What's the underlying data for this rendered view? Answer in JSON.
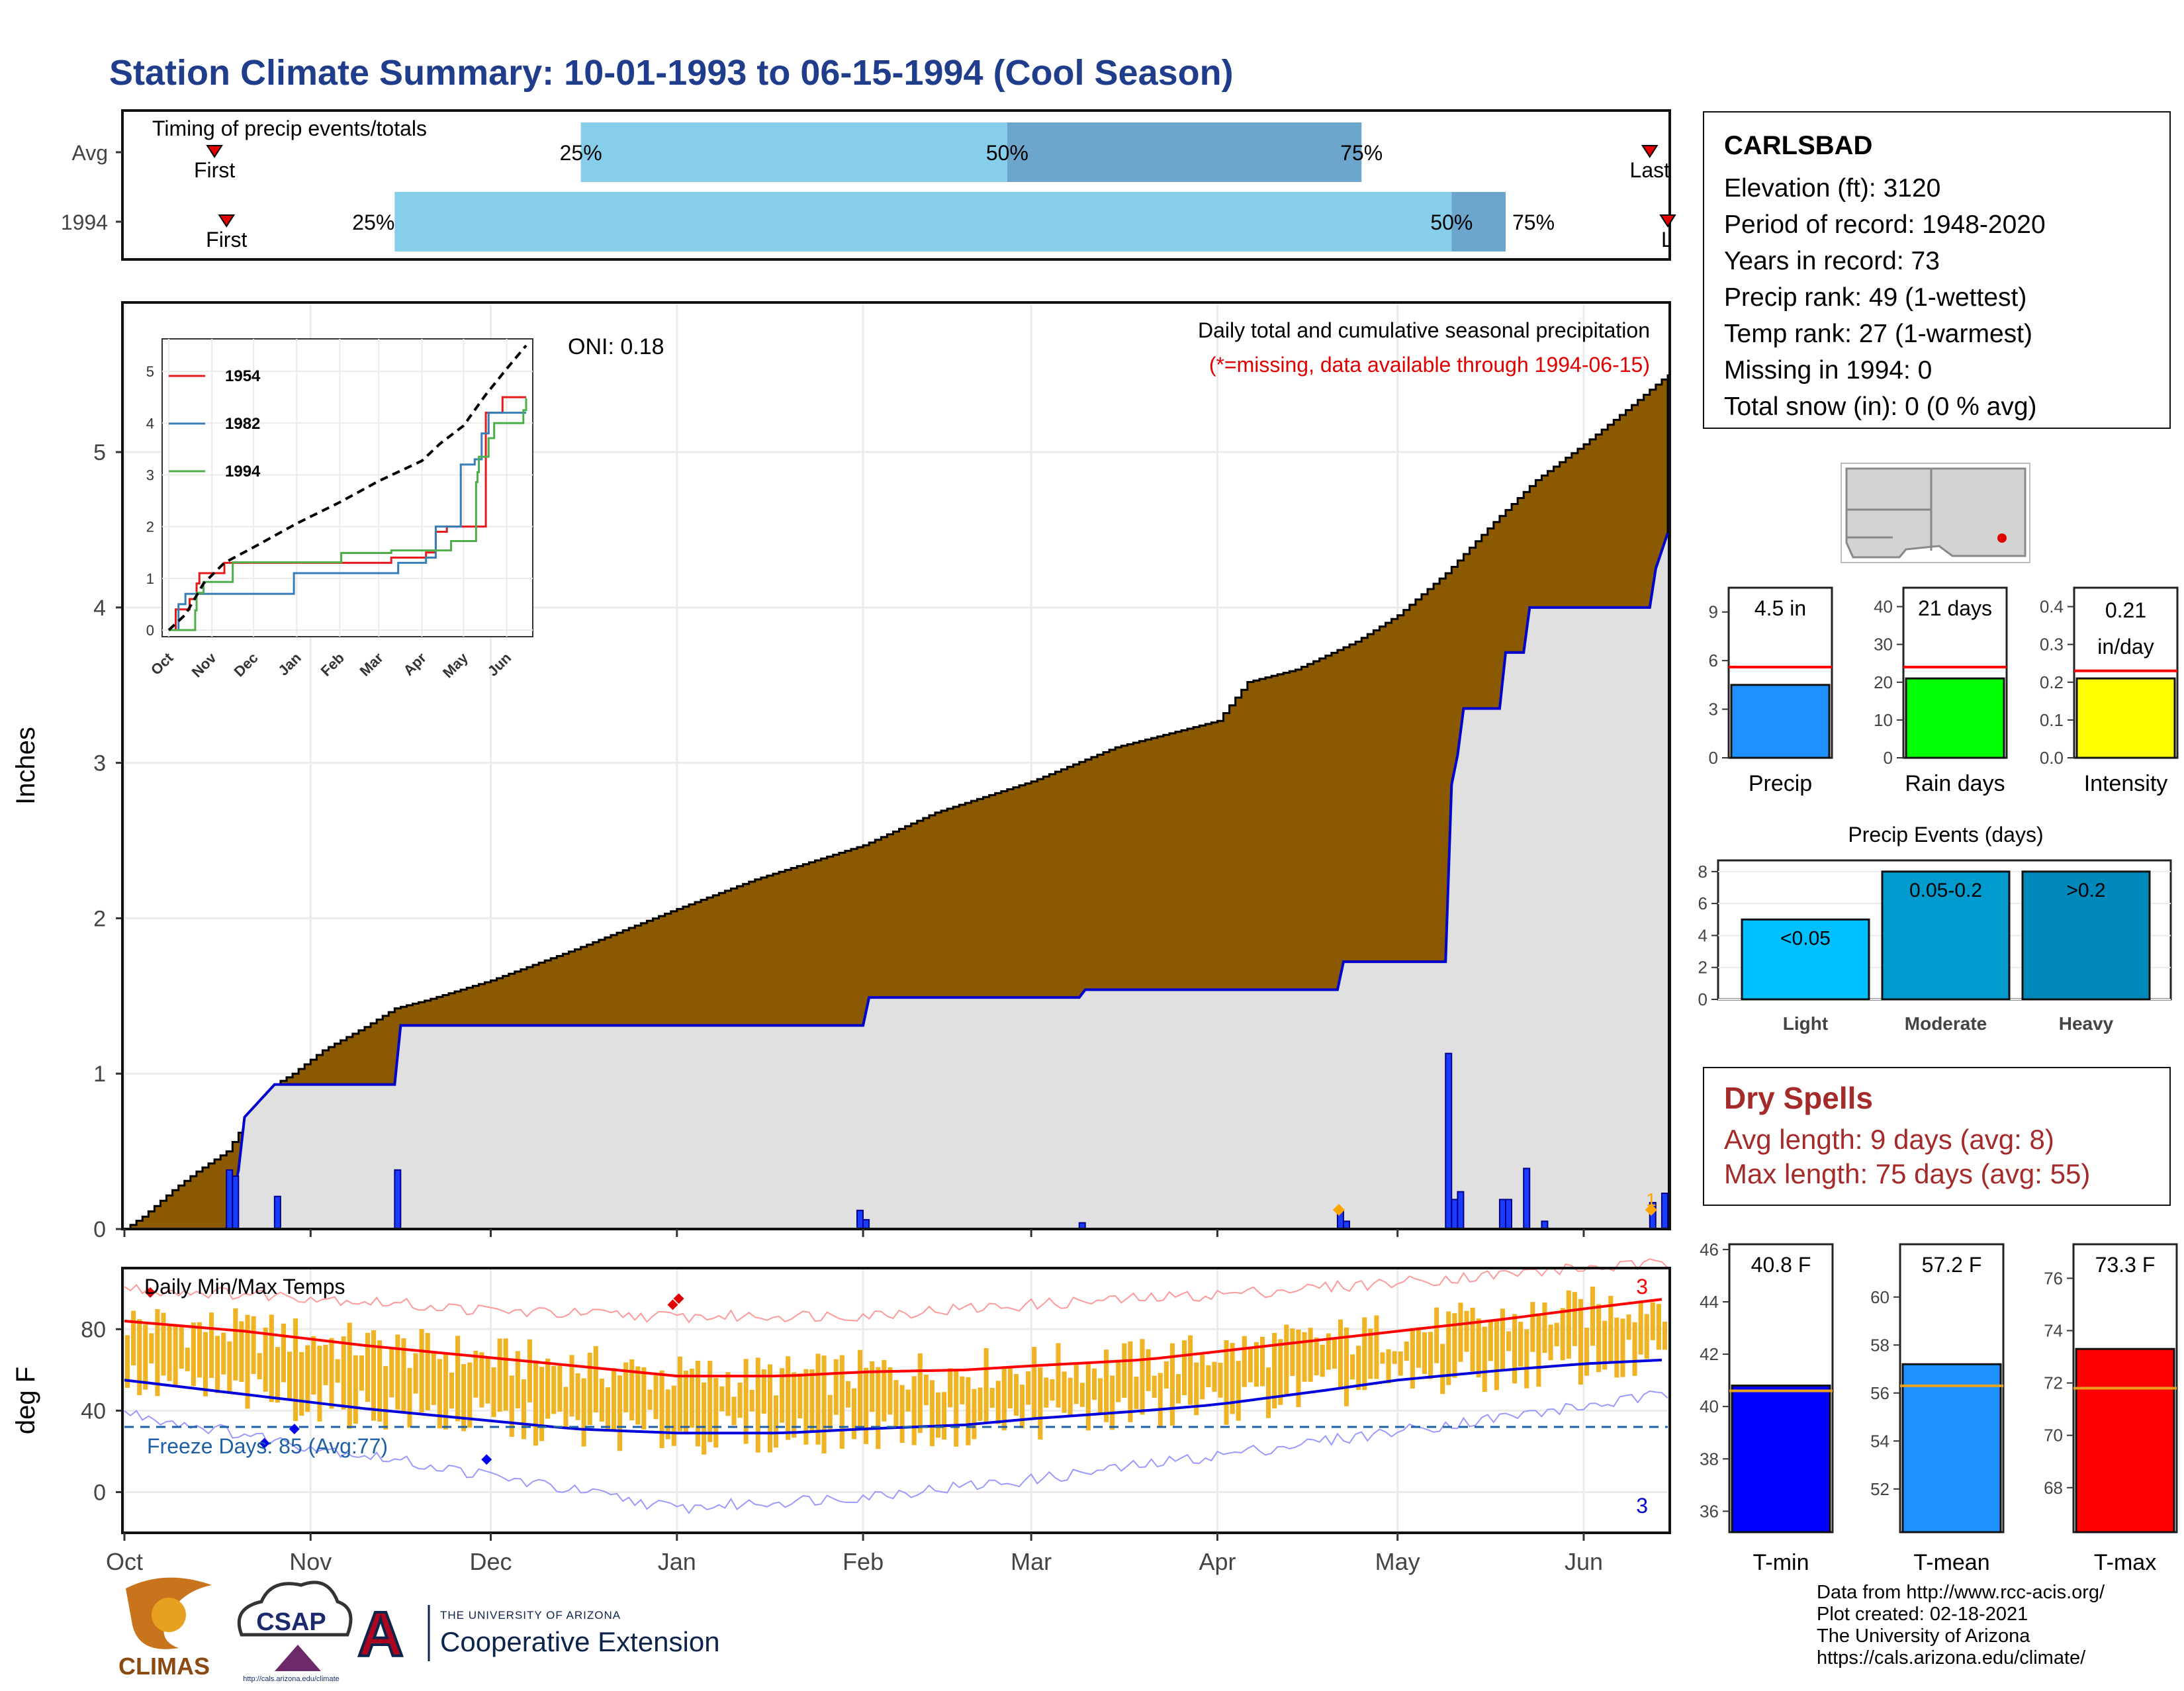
{
  "page": {
    "title": "Station Climate Summary: 10-01-1993 to 06-15-1994 (Cool Season)"
  },
  "timing_panel": {
    "title": "Timing of precip events/totals",
    "rows": [
      {
        "label": "Avg",
        "first_label": "First",
        "last_label": "Last",
        "first": "1993-10-16",
        "last": "1994-06-12",
        "p25": "1993-12-16",
        "p50": "1994-02-25",
        "p75": "1994-04-25",
        "p25_label": "25%",
        "p50_label": "50%",
        "p75_label": "75%"
      },
      {
        "label": "1994",
        "first_label": "First",
        "last_label": "Last",
        "first": "1993-10-18",
        "last": "1994-06-15",
        "p25": "1993-11-15",
        "p50": "1994-05-10",
        "p75": "1994-05-19",
        "p25_label": "25%",
        "p50_label": "50%",
        "p75_label": "75%"
      }
    ]
  },
  "precip_panel": {
    "ylabel": "Inches",
    "oni": "ONI: 0.18",
    "caption": "Daily total and cumulative seasonal precipitation",
    "missing_note": "(*=missing, data available through 1994-06-15)",
    "orange_marker_label": "1",
    "colors": {
      "avg_fill": "#8b5a00",
      "year_fill": "#e0e0e0",
      "year_line": "#0000cc",
      "daily_bar": "#1a3cff"
    }
  },
  "inset": {
    "years": [
      "1954",
      "1982",
      "1994"
    ],
    "colors": {
      "1954": "#e41a1c",
      "1982": "#377eb8",
      "1994": "#4daf4a"
    }
  },
  "temp_panel": {
    "ylabel": "deg F",
    "title": "Daily Min/Max Temps",
    "freeze_label": "Freeze Days: 85 (Avg:77)",
    "record_high_count": "3",
    "record_low_count": "3",
    "colors": {
      "bar": "#f0b323",
      "max_line": "#ff0000",
      "min_line": "#0000dd",
      "freeze": "#1f5fa5"
    }
  },
  "station": {
    "name": "CARLSBAD",
    "lines": [
      "Elevation (ft): 3120",
      "Period of record: 1948-2020",
      "Years in record: 73",
      "Precip rank: 49 (1-wettest)",
      "Temp rank: 27 (1-warmest)",
      "Missing in 1994: 0",
      "Total snow (in): 0 (0 % avg)"
    ]
  },
  "dry_spells": {
    "title": "Dry Spells",
    "avg_length": "Avg length: 9 days (avg: 8)",
    "max_length": "Max length: 75 days (avg: 55)"
  },
  "credits": {
    "lines": [
      "Data from http://www.rcc-acis.org/",
      "Plot created: 02-18-2021",
      "The University of Arizona",
      "https://cals.arizona.edu/climate/"
    ]
  },
  "logos": {
    "climas": "CLIMAS",
    "csap": "CSAP",
    "csap_url": "http://cals.arizona.edu/climate",
    "ua_line1": "THE UNIVERSITY OF ARIZONA",
    "ua_line2": "Cooperative Extension"
  },
  "chart_data": [
    {
      "type": "area",
      "title": "Daily total and cumulative seasonal precipitation",
      "ylabel": "Inches",
      "ylim": [
        0,
        5.95
      ],
      "x_ticks": [
        "Oct",
        "Nov",
        "Dec",
        "Jan",
        "Feb",
        "Mar",
        "Apr",
        "May",
        "Jun"
      ],
      "x_tick_days": [
        0,
        31,
        61,
        92,
        123,
        151,
        182,
        212,
        243
      ],
      "x_range_days": [
        0,
        257
      ],
      "y_ticks": [
        0,
        1,
        2,
        3,
        4,
        5
      ],
      "avg_cumulative": {
        "days": [
          0,
          3,
          8,
          12,
          17,
          20,
          22,
          25,
          28,
          33,
          40,
          45,
          50,
          61,
          75,
          92,
          105,
          123,
          135,
          151,
          165,
          182,
          187,
          195,
          205,
          212,
          220,
          228,
          235,
          243,
          250,
          257
        ],
        "values": [
          0,
          0.08,
          0.25,
          0.37,
          0.5,
          0.68,
          0.8,
          0.93,
          1.0,
          1.15,
          1.3,
          1.42,
          1.47,
          1.6,
          1.8,
          2.06,
          2.25,
          2.47,
          2.68,
          2.88,
          3.1,
          3.27,
          3.52,
          3.6,
          3.78,
          3.95,
          4.22,
          4.55,
          4.82,
          5.05,
          5.27,
          5.5
        ]
      },
      "year_cumulative": {
        "days": [
          0,
          17,
          19,
          20,
          25,
          45,
          46,
          123,
          124,
          159,
          160,
          202,
          203,
          220,
          221,
          222,
          223,
          229,
          230,
          233,
          234,
          254,
          255,
          257
        ],
        "values": [
          0,
          0,
          0.38,
          0.72,
          0.93,
          0.93,
          1.31,
          1.31,
          1.49,
          1.49,
          1.54,
          1.54,
          1.72,
          1.72,
          2.86,
          3.05,
          3.35,
          3.35,
          3.71,
          3.71,
          4.0,
          4.0,
          4.25,
          4.48
        ]
      },
      "year_daily": {
        "days": [
          17,
          18,
          25,
          45,
          122,
          123,
          159,
          202,
          203,
          220,
          221,
          222,
          229,
          230,
          233,
          236,
          254,
          256
        ],
        "values": [
          0.38,
          0.34,
          0.21,
          0.38,
          0.12,
          0.06,
          0.04,
          0.12,
          0.05,
          1.13,
          0.19,
          0.24,
          0.19,
          0.19,
          0.39,
          0.05,
          0.17,
          0.23
        ]
      },
      "missing_markers_days": [
        202,
        254
      ]
    },
    {
      "type": "line",
      "title": "",
      "x_ticks": [
        "Oct",
        "Nov",
        "Dec",
        "Jan",
        "Feb",
        "Mar",
        "Apr",
        "May",
        "Jun"
      ],
      "y_ticks": [
        0,
        1,
        2,
        3,
        4,
        5
      ],
      "ylim": [
        0,
        5.5
      ],
      "series": [
        {
          "name": "1954",
          "days": [
            0,
            5,
            15,
            20,
            22,
            40,
            60,
            120,
            160,
            185,
            192,
            200,
            205,
            225,
            228,
            240,
            257
          ],
          "values": [
            0,
            0.4,
            0.6,
            0.9,
            1.1,
            1.3,
            1.3,
            1.3,
            1.4,
            1.5,
            1.9,
            2.0,
            2.0,
            2.0,
            4.2,
            4.5,
            4.5
          ]
        },
        {
          "name": "1982",
          "days": [
            0,
            7,
            12,
            30,
            60,
            90,
            120,
            165,
            185,
            192,
            210,
            213,
            220,
            225,
            230,
            257
          ],
          "values": [
            0,
            0.5,
            0.7,
            0.7,
            0.7,
            1.1,
            1.1,
            1.3,
            1.4,
            2.0,
            3.2,
            3.2,
            3.3,
            3.8,
            4.2,
            4.2
          ]
        },
        {
          "name": "1994",
          "days": [
            0,
            17,
            19,
            20,
            25,
            45,
            46,
            123,
            124,
            159,
            160,
            202,
            203,
            220,
            221,
            222,
            223,
            229,
            230,
            233,
            234,
            254,
            255,
            257
          ],
          "values": [
            0,
            0,
            0.38,
            0.72,
            0.93,
            0.93,
            1.31,
            1.31,
            1.49,
            1.49,
            1.54,
            1.54,
            1.72,
            1.72,
            2.86,
            3.05,
            3.35,
            3.35,
            3.71,
            3.71,
            4.0,
            4.0,
            4.25,
            4.48
          ]
        },
        {
          "name": "average",
          "days": [
            0,
            12,
            25,
            40,
            61,
            92,
            123,
            151,
            182,
            195,
            212,
            228,
            243,
            257
          ],
          "values": [
            0,
            0.3,
            0.9,
            1.3,
            1.6,
            2.06,
            2.47,
            2.88,
            3.27,
            3.6,
            3.95,
            4.55,
            5.05,
            5.5
          ]
        }
      ]
    },
    {
      "type": "bar",
      "title": "Daily Min/Max Temps",
      "ylabel": "deg F",
      "ylim": [
        -20,
        110
      ],
      "y_ticks": [
        0,
        40,
        80
      ],
      "x_ticks": [
        "Oct",
        "Nov",
        "Dec",
        "Jan",
        "Feb",
        "Mar",
        "Apr",
        "May",
        "Jun"
      ],
      "freeze_line": 32,
      "avg_max": {
        "days": [
          0,
          20,
          40,
          61,
          75,
          92,
          110,
          123,
          140,
          151,
          170,
          182,
          200,
          212,
          230,
          243,
          257
        ],
        "values": [
          84,
          79,
          72,
          66,
          62,
          57,
          57,
          59,
          60,
          62,
          65,
          69,
          75,
          79,
          85,
          90,
          95
        ]
      },
      "avg_min": {
        "days": [
          0,
          20,
          40,
          61,
          75,
          92,
          110,
          123,
          140,
          151,
          170,
          182,
          200,
          212,
          230,
          243,
          257
        ],
        "values": [
          55,
          48,
          41,
          35,
          31,
          29,
          29,
          31,
          33,
          36,
          40,
          43,
          50,
          55,
          60,
          63,
          65
        ]
      },
      "record_high": {
        "days": [
          0,
          30,
          61,
          92,
          123,
          151,
          182,
          212,
          243,
          257
        ],
        "values": [
          100,
          96,
          89,
          86,
          87,
          92,
          97,
          103,
          110,
          112
        ]
      },
      "record_low": {
        "days": [
          0,
          30,
          61,
          92,
          123,
          151,
          182,
          212,
          243,
          257
        ],
        "values": [
          39,
          23,
          8,
          -8,
          -2,
          6,
          18,
          30,
          42,
          48
        ]
      }
    },
    {
      "type": "bar",
      "title": "",
      "categories": [
        "Precip",
        "Rain days",
        "Intensity"
      ],
      "values": [
        4.5,
        21,
        0.21
      ],
      "value_labels": [
        "4.5 in",
        "21 days",
        "0.21 in/day"
      ],
      "averages": [
        5.6,
        24,
        0.23
      ],
      "ylims": [
        [
          0,
          10.5
        ],
        [
          0,
          45
        ],
        [
          0,
          0.45
        ]
      ],
      "y_ticks": [
        [
          0,
          3,
          6,
          9
        ],
        [
          0,
          10,
          20,
          30,
          40
        ],
        [
          0.0,
          0.1,
          0.2,
          0.3,
          0.4
        ]
      ]
    },
    {
      "type": "bar",
      "title": "Precip Events (days)",
      "categories": [
        "Light",
        "Moderate",
        "Heavy"
      ],
      "bin_labels": [
        "<0.05",
        "0.05-0.2",
        ">0.2"
      ],
      "values": [
        5,
        8,
        8
      ],
      "ylim": [
        0,
        8.7
      ],
      "y_ticks": [
        0,
        2,
        4,
        6,
        8
      ]
    },
    {
      "type": "bar",
      "title": "",
      "categories": [
        "T-min",
        "T-mean",
        "T-max"
      ],
      "values": [
        40.8,
        57.2,
        73.3
      ],
      "value_labels": [
        "40.8 F",
        "57.2 F",
        "73.3 F"
      ],
      "averages": [
        40.6,
        56.3,
        71.8
      ],
      "ylims": [
        [
          35.2,
          46.2
        ],
        [
          50.2,
          62.2
        ],
        [
          66.3,
          77.3
        ]
      ],
      "y_ticks": [
        [
          36,
          38,
          40,
          42,
          44,
          46
        ],
        [
          52,
          54,
          56,
          58,
          60
        ],
        [
          68,
          70,
          72,
          74,
          76
        ]
      ]
    }
  ]
}
